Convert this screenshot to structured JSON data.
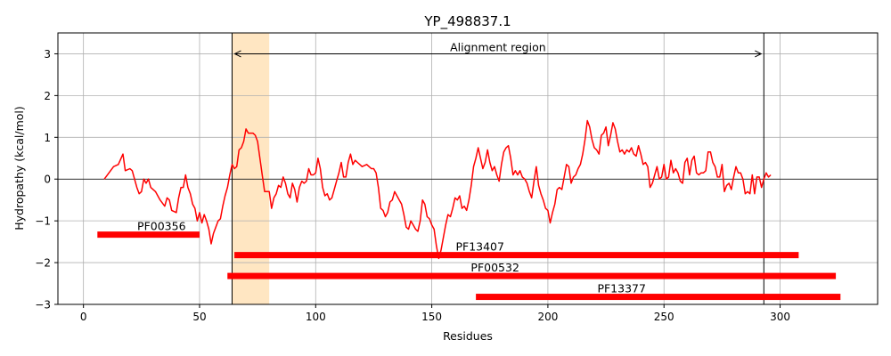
{
  "chart_data": {
    "type": "line",
    "title": "YP_498837.1",
    "xlabel": "Residues",
    "ylabel": "Hydropathy (kcal/mol)",
    "xlim": [
      -11,
      342
    ],
    "ylim": [
      -3,
      3.5
    ],
    "xticks": [
      0,
      50,
      100,
      150,
      200,
      250,
      300
    ],
    "yticks": [
      -3,
      -2,
      -1,
      0,
      1,
      2,
      3
    ],
    "grid": true,
    "series": [
      {
        "color": "#ff0000",
        "points": [
          [
            9,
            0.0
          ],
          [
            11,
            0.15
          ],
          [
            13,
            0.3
          ],
          [
            15,
            0.35
          ],
          [
            17,
            0.6
          ],
          [
            18,
            0.2
          ],
          [
            20,
            0.25
          ],
          [
            21,
            0.2
          ],
          [
            23,
            -0.2
          ],
          [
            24,
            -0.35
          ],
          [
            25,
            -0.3
          ],
          [
            26,
            0.0
          ],
          [
            27,
            -0.1
          ],
          [
            28,
            0.0
          ],
          [
            29,
            -0.2
          ],
          [
            31,
            -0.3
          ],
          [
            33,
            -0.5
          ],
          [
            35,
            -0.65
          ],
          [
            36,
            -0.45
          ],
          [
            37,
            -0.5
          ],
          [
            38,
            -0.75
          ],
          [
            40,
            -0.8
          ],
          [
            41,
            -0.45
          ],
          [
            42,
            -0.2
          ],
          [
            43,
            -0.2
          ],
          [
            44,
            0.1
          ],
          [
            45,
            -0.2
          ],
          [
            46,
            -0.35
          ],
          [
            47,
            -0.6
          ],
          [
            48,
            -0.7
          ],
          [
            49,
            -1.0
          ],
          [
            50,
            -0.8
          ],
          [
            51,
            -1.05
          ],
          [
            52,
            -0.85
          ],
          [
            53,
            -1.0
          ],
          [
            54,
            -1.2
          ],
          [
            55,
            -1.55
          ],
          [
            56,
            -1.3
          ],
          [
            57,
            -1.15
          ],
          [
            58,
            -1.0
          ],
          [
            59,
            -0.95
          ],
          [
            60,
            -0.65
          ],
          [
            61,
            -0.4
          ],
          [
            62,
            -0.2
          ],
          [
            63,
            0.1
          ],
          [
            64,
            0.35
          ],
          [
            65,
            0.25
          ],
          [
            66,
            0.3
          ],
          [
            67,
            0.7
          ],
          [
            68,
            0.75
          ],
          [
            69,
            0.9
          ],
          [
            70,
            1.2
          ],
          [
            71,
            1.1
          ],
          [
            72,
            1.1
          ],
          [
            73,
            1.1
          ],
          [
            74,
            1.05
          ],
          [
            75,
            0.9
          ],
          [
            76,
            0.5
          ],
          [
            77,
            0.1
          ],
          [
            78,
            -0.3
          ],
          [
            79,
            -0.3
          ],
          [
            80,
            -0.3
          ],
          [
            81,
            -0.7
          ],
          [
            82,
            -0.45
          ],
          [
            83,
            -0.35
          ],
          [
            84,
            -0.15
          ],
          [
            85,
            -0.2
          ],
          [
            86,
            0.05
          ],
          [
            87,
            -0.1
          ],
          [
            88,
            -0.35
          ],
          [
            89,
            -0.45
          ],
          [
            90,
            -0.1
          ],
          [
            91,
            -0.25
          ],
          [
            92,
            -0.55
          ],
          [
            93,
            -0.2
          ],
          [
            94,
            -0.05
          ],
          [
            95,
            -0.1
          ],
          [
            96,
            -0.05
          ],
          [
            97,
            0.25
          ],
          [
            98,
            0.1
          ],
          [
            99,
            0.1
          ],
          [
            100,
            0.15
          ],
          [
            101,
            0.5
          ],
          [
            102,
            0.25
          ],
          [
            103,
            -0.2
          ],
          [
            104,
            -0.4
          ],
          [
            105,
            -0.35
          ],
          [
            106,
            -0.5
          ],
          [
            107,
            -0.45
          ],
          [
            108,
            -0.25
          ],
          [
            109,
            -0.05
          ],
          [
            110,
            0.15
          ],
          [
            111,
            0.4
          ],
          [
            112,
            0.05
          ],
          [
            113,
            0.05
          ],
          [
            114,
            0.4
          ],
          [
            115,
            0.6
          ],
          [
            116,
            0.35
          ],
          [
            117,
            0.45
          ],
          [
            118,
            0.4
          ],
          [
            119,
            0.35
          ],
          [
            120,
            0.3
          ],
          [
            122,
            0.35
          ],
          [
            123,
            0.3
          ],
          [
            124,
            0.25
          ],
          [
            125,
            0.25
          ],
          [
            126,
            0.15
          ],
          [
            127,
            -0.2
          ],
          [
            128,
            -0.7
          ],
          [
            129,
            -0.75
          ],
          [
            130,
            -0.9
          ],
          [
            131,
            -0.8
          ],
          [
            132,
            -0.55
          ],
          [
            133,
            -0.5
          ],
          [
            134,
            -0.3
          ],
          [
            135,
            -0.4
          ],
          [
            136,
            -0.5
          ],
          [
            137,
            -0.6
          ],
          [
            138,
            -0.85
          ],
          [
            139,
            -1.15
          ],
          [
            140,
            -1.2
          ],
          [
            141,
            -1.0
          ],
          [
            142,
            -1.1
          ],
          [
            143,
            -1.2
          ],
          [
            144,
            -1.25
          ],
          [
            145,
            -1.0
          ],
          [
            146,
            -0.5
          ],
          [
            147,
            -0.6
          ],
          [
            148,
            -0.9
          ],
          [
            149,
            -0.95
          ],
          [
            150,
            -1.1
          ],
          [
            151,
            -1.2
          ],
          [
            152,
            -1.6
          ],
          [
            153,
            -1.9
          ],
          [
            154,
            -1.7
          ],
          [
            155,
            -1.4
          ],
          [
            156,
            -1.1
          ],
          [
            157,
            -0.85
          ],
          [
            158,
            -0.9
          ],
          [
            159,
            -0.7
          ],
          [
            160,
            -0.45
          ],
          [
            161,
            -0.5
          ],
          [
            162,
            -0.4
          ],
          [
            163,
            -0.7
          ],
          [
            164,
            -0.65
          ],
          [
            165,
            -0.75
          ],
          [
            166,
            -0.5
          ],
          [
            167,
            -0.15
          ],
          [
            168,
            0.3
          ],
          [
            169,
            0.5
          ],
          [
            170,
            0.75
          ],
          [
            171,
            0.5
          ],
          [
            172,
            0.25
          ],
          [
            173,
            0.4
          ],
          [
            174,
            0.7
          ],
          [
            175,
            0.4
          ],
          [
            176,
            0.2
          ],
          [
            177,
            0.3
          ],
          [
            178,
            0.1
          ],
          [
            179,
            -0.05
          ],
          [
            180,
            0.35
          ],
          [
            181,
            0.65
          ],
          [
            182,
            0.75
          ],
          [
            183,
            0.8
          ],
          [
            184,
            0.5
          ],
          [
            185,
            0.1
          ],
          [
            186,
            0.2
          ],
          [
            187,
            0.1
          ],
          [
            188,
            0.2
          ],
          [
            189,
            0.05
          ],
          [
            190,
            0.0
          ],
          [
            191,
            -0.1
          ],
          [
            192,
            -0.3
          ],
          [
            193,
            -0.45
          ],
          [
            194,
            -0.05
          ],
          [
            195,
            0.3
          ],
          [
            196,
            -0.15
          ],
          [
            197,
            -0.35
          ],
          [
            198,
            -0.5
          ],
          [
            199,
            -0.7
          ],
          [
            200,
            -0.75
          ],
          [
            201,
            -1.05
          ],
          [
            202,
            -0.8
          ],
          [
            203,
            -0.6
          ],
          [
            204,
            -0.25
          ],
          [
            205,
            -0.2
          ],
          [
            206,
            -0.25
          ],
          [
            207,
            0.05
          ],
          [
            208,
            0.35
          ],
          [
            209,
            0.3
          ],
          [
            210,
            -0.1
          ],
          [
            211,
            0.05
          ],
          [
            212,
            0.1
          ],
          [
            213,
            0.25
          ],
          [
            214,
            0.35
          ],
          [
            215,
            0.6
          ],
          [
            216,
            0.95
          ],
          [
            217,
            1.4
          ],
          [
            218,
            1.25
          ],
          [
            219,
            0.95
          ],
          [
            220,
            0.75
          ],
          [
            221,
            0.7
          ],
          [
            222,
            0.6
          ],
          [
            223,
            1.05
          ],
          [
            224,
            1.1
          ],
          [
            225,
            1.25
          ],
          [
            226,
            0.8
          ],
          [
            227,
            1.05
          ],
          [
            228,
            1.35
          ],
          [
            229,
            1.2
          ],
          [
            230,
            0.9
          ],
          [
            231,
            0.65
          ],
          [
            232,
            0.7
          ],
          [
            233,
            0.6
          ],
          [
            234,
            0.7
          ],
          [
            235,
            0.65
          ],
          [
            236,
            0.75
          ],
          [
            237,
            0.6
          ],
          [
            238,
            0.55
          ],
          [
            239,
            0.8
          ],
          [
            240,
            0.6
          ],
          [
            241,
            0.35
          ],
          [
            242,
            0.4
          ],
          [
            243,
            0.3
          ],
          [
            244,
            -0.2
          ],
          [
            245,
            -0.1
          ],
          [
            246,
            0.1
          ],
          [
            247,
            0.3
          ],
          [
            248,
            0.0
          ],
          [
            249,
            0.05
          ],
          [
            250,
            0.35
          ],
          [
            251,
            0.0
          ],
          [
            252,
            0.05
          ],
          [
            253,
            0.45
          ],
          [
            254,
            0.15
          ],
          [
            255,
            0.25
          ],
          [
            256,
            0.15
          ],
          [
            257,
            -0.05
          ],
          [
            258,
            -0.1
          ],
          [
            259,
            0.4
          ],
          [
            260,
            0.5
          ],
          [
            261,
            0.1
          ],
          [
            262,
            0.45
          ],
          [
            263,
            0.55
          ],
          [
            264,
            0.15
          ],
          [
            265,
            0.1
          ],
          [
            266,
            0.15
          ],
          [
            267,
            0.15
          ],
          [
            268,
            0.2
          ],
          [
            269,
            0.65
          ],
          [
            270,
            0.65
          ],
          [
            271,
            0.4
          ],
          [
            272,
            0.3
          ],
          [
            273,
            0.05
          ],
          [
            274,
            0.05
          ],
          [
            275,
            0.35
          ],
          [
            276,
            -0.3
          ],
          [
            277,
            -0.15
          ],
          [
            278,
            -0.1
          ],
          [
            279,
            -0.25
          ],
          [
            280,
            0.05
          ],
          [
            281,
            0.3
          ],
          [
            282,
            0.15
          ],
          [
            283,
            0.15
          ],
          [
            284,
            0.0
          ],
          [
            285,
            -0.35
          ],
          [
            286,
            -0.3
          ],
          [
            287,
            -0.35
          ],
          [
            288,
            0.1
          ],
          [
            289,
            -0.35
          ],
          [
            290,
            0.05
          ],
          [
            291,
            0.05
          ],
          [
            292,
            -0.2
          ],
          [
            293,
            0.0
          ],
          [
            294,
            0.15
          ],
          [
            295,
            0.05
          ],
          [
            296,
            0.1
          ]
        ]
      }
    ],
    "domains": [
      {
        "label": "PF00356",
        "start": 6,
        "end": 50,
        "y": -1.33
      },
      {
        "label": "PF13407",
        "start": 65,
        "end": 308,
        "y": -1.82
      },
      {
        "label": "PF00532",
        "start": 62,
        "end": 324,
        "y": -2.32
      },
      {
        "label": "PF13377",
        "start": 169,
        "end": 326,
        "y": -2.82
      }
    ],
    "highlight_region": {
      "start": 64,
      "end": 80
    },
    "alignment_region": {
      "label": "Alignment region",
      "start": 64,
      "end": 293,
      "y": 3.0
    }
  }
}
